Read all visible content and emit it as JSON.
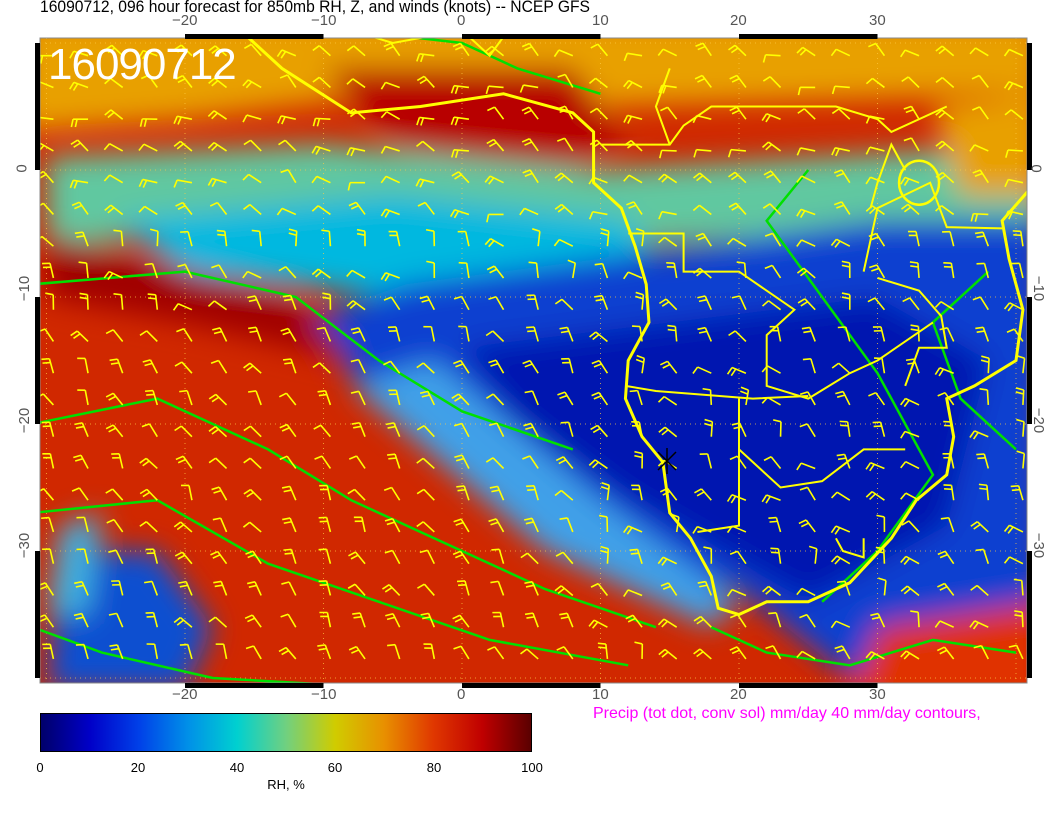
{
  "title": "16090712, 096 hour forecast for 850mb RH, Z, and winds (knots)  -- NCEP GFS",
  "map": {
    "stamp": "16090712",
    "x_ticks": [
      "−20",
      "−10",
      "0",
      "10",
      "20",
      "30"
    ],
    "y_ticks": [
      "0",
      "−10",
      "−20",
      "−30"
    ],
    "colors": {
      "coastline": "#ffff00",
      "height_contours": "#00e000",
      "wind_barbs": "#ffff00"
    }
  },
  "colorbar": {
    "ticks": [
      "0",
      "20",
      "40",
      "60",
      "80",
      "100"
    ],
    "label": "RH, %"
  },
  "precip_note": "Precip (tot dot, conv sol) mm/day 40 mm/day contours,"
}
